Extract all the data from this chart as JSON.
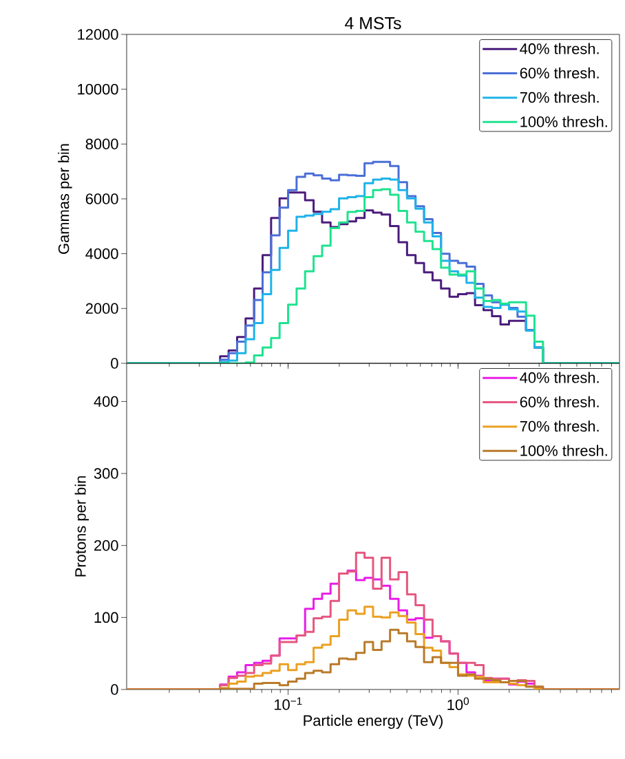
{
  "chart_data": [
    {
      "type": "histogram",
      "title": "4 MSTs",
      "ylabel": "Gammas per bin",
      "log": "x",
      "legend": "top right",
      "tick_labels": "y",
      "bins": [
        0.01122,
        0.01259,
        0.01413,
        0.01585,
        0.01778,
        0.01995,
        0.02239,
        0.02512,
        0.02818,
        0.03162,
        0.03548,
        0.03981,
        0.04467,
        0.05012,
        0.05623,
        0.0631,
        0.07079,
        0.07943,
        0.08913,
        0.1,
        0.1122,
        0.1259,
        0.1413,
        0.1585,
        0.1778,
        0.1995,
        0.2239,
        0.2512,
        0.2818,
        0.3162,
        0.3548,
        0.3981,
        0.4467,
        0.5012,
        0.5623,
        0.631,
        0.7079,
        0.7943,
        0.8913,
        1,
        1.122,
        1.259,
        1.413,
        1.585,
        1.778,
        1.995,
        2.239,
        2.512,
        2.818,
        3.162,
        3.548,
        3.981,
        4.467,
        5.012,
        5.623,
        6.31,
        7.079,
        7.943,
        8.913
      ],
      "series": [
        {
          "name": "40% thresh.",
          "color": "#4b1c7d",
          "values": [
            0,
            0,
            0,
            0,
            0,
            0,
            0,
            0,
            0,
            0,
            0,
            260,
            470,
            960,
            1640,
            2730,
            3950,
            5300,
            6020,
            6230,
            6230,
            5950,
            5530,
            5140,
            4970,
            5080,
            5180,
            5300,
            5580,
            5500,
            5430,
            5010,
            4420,
            3950,
            3660,
            3320,
            3030,
            2730,
            2430,
            2520,
            2560,
            2120,
            1940,
            1720,
            1420,
            1550,
            1550,
            1210,
            580,
            0,
            0,
            0,
            0,
            0,
            0,
            0,
            0,
            0
          ]
        },
        {
          "name": "60% thresh.",
          "color": "#4a6fd6",
          "values": [
            0,
            0,
            0,
            0,
            0,
            0,
            0,
            0,
            0,
            0,
            0,
            130,
            370,
            790,
            1380,
            2310,
            3320,
            4670,
            5680,
            6320,
            6800,
            6920,
            6860,
            6740,
            6680,
            6880,
            6860,
            6840,
            7300,
            7350,
            7350,
            7200,
            6610,
            6100,
            5730,
            5260,
            4760,
            4000,
            3740,
            3660,
            3530,
            2900,
            2480,
            2230,
            2140,
            2020,
            1700,
            1200,
            580,
            0,
            0,
            0,
            0,
            0,
            0,
            0,
            0,
            0
          ]
        },
        {
          "name": "70% thresh.",
          "color": "#1eb3e8",
          "values": [
            0,
            0,
            0,
            0,
            0,
            0,
            0,
            0,
            0,
            0,
            0,
            50,
            100,
            370,
            880,
            1470,
            2520,
            3410,
            4210,
            4840,
            5350,
            5390,
            5450,
            5530,
            5620,
            6020,
            6060,
            6100,
            6570,
            6700,
            6740,
            6700,
            6320,
            6020,
            5640,
            5140,
            4630,
            3740,
            3360,
            3200,
            2940,
            2400,
            2060,
            2020,
            2140,
            1970,
            1890,
            1200,
            580,
            0,
            0,
            0,
            0,
            0,
            0,
            0,
            0,
            0
          ]
        },
        {
          "name": "100% thresh.",
          "color": "#1fe28f",
          "values": [
            0,
            0,
            0,
            0,
            0,
            0,
            0,
            0,
            0,
            0,
            0,
            0,
            0,
            0,
            30,
            290,
            580,
            920,
            1470,
            2140,
            2730,
            3360,
            3910,
            4290,
            4930,
            5140,
            5520,
            5560,
            6060,
            6320,
            6350,
            6150,
            5560,
            5140,
            4800,
            4460,
            4170,
            3490,
            3240,
            3240,
            3360,
            2730,
            2270,
            2310,
            2180,
            2230,
            2230,
            1740,
            790,
            0,
            0,
            0,
            0,
            0,
            0,
            0,
            0,
            0
          ]
        }
      ],
      "xlim": [
        0.01122,
        8.913
      ],
      "ylim": [
        0,
        12000
      ],
      "xticks": [
        {
          "value": 0.02,
          "label": null
        },
        {
          "value": 0.03,
          "label": null
        },
        {
          "value": 0.04,
          "label": null
        },
        {
          "value": 0.05,
          "label": null
        },
        {
          "value": 0.06,
          "label": null
        },
        {
          "value": 0.07,
          "label": null
        },
        {
          "value": 0.08,
          "label": null
        },
        {
          "value": 0.09,
          "label": null
        },
        {
          "value": 0.1,
          "label": null
        },
        {
          "value": 0.2,
          "label": null
        },
        {
          "value": 0.3,
          "label": null
        },
        {
          "value": 0.4,
          "label": null
        },
        {
          "value": 0.5,
          "label": null
        },
        {
          "value": 0.6,
          "label": null
        },
        {
          "value": 0.7,
          "label": null
        },
        {
          "value": 0.8,
          "label": null
        },
        {
          "value": 0.9,
          "label": null
        },
        {
          "value": 1,
          "label": null
        },
        {
          "value": 2,
          "label": null
        },
        {
          "value": 3,
          "label": null
        },
        {
          "value": 4,
          "label": null
        },
        {
          "value": 5,
          "label": null
        },
        {
          "value": 6,
          "label": null
        },
        {
          "value": 7,
          "label": null
        },
        {
          "value": 8,
          "label": null
        }
      ],
      "yticks": [
        0,
        2000,
        4000,
        6000,
        8000,
        10000,
        12000
      ]
    },
    {
      "type": "histogram",
      "xlabel": "Particle energy (TeV)",
      "ylabel": "Protons per bin",
      "log": "x",
      "legend": "top right",
      "bins": [
        0.01122,
        0.01259,
        0.01413,
        0.01585,
        0.01778,
        0.01995,
        0.02239,
        0.02512,
        0.02818,
        0.03162,
        0.03548,
        0.03981,
        0.04467,
        0.05012,
        0.05623,
        0.0631,
        0.07079,
        0.07943,
        0.08913,
        0.1,
        0.1122,
        0.1259,
        0.1413,
        0.1585,
        0.1778,
        0.1995,
        0.2239,
        0.2512,
        0.2818,
        0.3162,
        0.3548,
        0.3981,
        0.4467,
        0.5012,
        0.5623,
        0.631,
        0.7079,
        0.7943,
        0.8913,
        1,
        1.122,
        1.259,
        1.413,
        1.585,
        1.778,
        1.995,
        2.239,
        2.512,
        2.818,
        3.162,
        3.548,
        3.981,
        4.467,
        5.012,
        5.623,
        6.31,
        7.079,
        7.943,
        8.913
      ],
      "series": [
        {
          "name": "40% thresh.",
          "color": "#e81ee8",
          "values": [
            0,
            0,
            0,
            0,
            0,
            0,
            0,
            0,
            0,
            0,
            0,
            7,
            18,
            24,
            34,
            37,
            40,
            47,
            71,
            71,
            75,
            112,
            126,
            133,
            147,
            161,
            165,
            152,
            155,
            153,
            144,
            126,
            110,
            97,
            99,
            72,
            74,
            67,
            50,
            37,
            24,
            19,
            13,
            15,
            15,
            7,
            11,
            8,
            2,
            0,
            0,
            0,
            0,
            0,
            0,
            0,
            0,
            0
          ]
        },
        {
          "name": "60% thresh.",
          "color": "#e6577f",
          "values": [
            0,
            0,
            0,
            0,
            0,
            0,
            0,
            0,
            0,
            0,
            0,
            6,
            16,
            19,
            23,
            34,
            36,
            47,
            66,
            66,
            75,
            80,
            99,
            101,
            123,
            161,
            164,
            190,
            183,
            140,
            183,
            153,
            163,
            132,
            117,
            97,
            74,
            67,
            50,
            37,
            37,
            34,
            16,
            15,
            15,
            12,
            13,
            12,
            2,
            0,
            0,
            0,
            0,
            0,
            0,
            0,
            0,
            0
          ]
        },
        {
          "name": "70% thresh.",
          "color": "#eba020",
          "values": [
            0,
            0,
            0,
            0,
            0,
            0,
            0,
            0,
            0,
            0,
            0,
            2,
            8,
            11,
            18,
            19,
            23,
            26,
            35,
            27,
            35,
            38,
            58,
            62,
            74,
            97,
            110,
            105,
            115,
            101,
            100,
            107,
            102,
            93,
            77,
            58,
            54,
            37,
            31,
            21,
            19,
            18,
            10,
            10,
            10,
            8,
            6,
            4,
            1,
            0,
            0,
            0,
            0,
            0,
            0,
            0,
            0,
            0
          ]
        },
        {
          "name": "100% thresh.",
          "color": "#b97a2a",
          "values": [
            0,
            0,
            0,
            0,
            0,
            0,
            0,
            0,
            0,
            0,
            0,
            1,
            1,
            1,
            1,
            8,
            9,
            9,
            6,
            11,
            15,
            23,
            26,
            24,
            35,
            43,
            42,
            51,
            66,
            55,
            67,
            83,
            78,
            67,
            59,
            38,
            45,
            37,
            37,
            19,
            21,
            15,
            15,
            13,
            10,
            12,
            12,
            4,
            4,
            0,
            0,
            0,
            0,
            0,
            0,
            0,
            0,
            0
          ]
        }
      ],
      "xlim": [
        0.01122,
        8.913
      ],
      "ylim": [
        0,
        453
      ],
      "xticks": [
        {
          "value": 0.02,
          "label": null
        },
        {
          "value": 0.03,
          "label": null
        },
        {
          "value": 0.04,
          "label": null
        },
        {
          "value": 0.05,
          "label": null
        },
        {
          "value": 0.06,
          "label": null
        },
        {
          "value": 0.07,
          "label": null
        },
        {
          "value": 0.08,
          "label": null
        },
        {
          "value": 0.09,
          "label": null
        },
        {
          "value": 0.1,
          "label": "10$^{−1}$"
        },
        {
          "value": 0.2,
          "label": null
        },
        {
          "value": 0.3,
          "label": null
        },
        {
          "value": 0.4,
          "label": null
        },
        {
          "value": 0.5,
          "label": null
        },
        {
          "value": 0.6,
          "label": null
        },
        {
          "value": 0.7,
          "label": null
        },
        {
          "value": 0.8,
          "label": null
        },
        {
          "value": 0.9,
          "label": null
        },
        {
          "value": 1,
          "label": "10$^{0}$"
        },
        {
          "value": 2,
          "label": null
        },
        {
          "value": 3,
          "label": null
        },
        {
          "value": 4,
          "label": null
        },
        {
          "value": 5,
          "label": null
        },
        {
          "value": 6,
          "label": null
        },
        {
          "value": 7,
          "label": null
        },
        {
          "value": 8,
          "label": null
        }
      ],
      "yticks": [
        0,
        100,
        200,
        300,
        400
      ]
    }
  ]
}
